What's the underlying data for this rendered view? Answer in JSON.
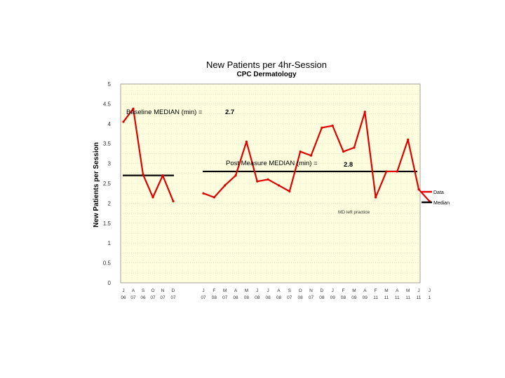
{
  "chart_data": {
    "type": "line",
    "title": "New Patients per 4hr-Session",
    "subtitle": "CPC Dermatology",
    "ylabel": "New Patients per Session",
    "ylim": [
      0,
      5
    ],
    "yticks": [
      "0",
      "0.5",
      "1",
      "1.5",
      "2",
      "2.5",
      "3",
      "3.5",
      "4",
      "4.5",
      "5"
    ],
    "grid": "dotted",
    "plot_background": "#FFFFE0",
    "baseline": {
      "x": [
        {
          "m": "J",
          "y": "06"
        },
        {
          "m": "A",
          "y": "07"
        },
        {
          "m": "S",
          "y": "06"
        },
        {
          "m": "O",
          "y": "07"
        },
        {
          "m": "N",
          "y": "07"
        },
        {
          "m": "D",
          "y": "07"
        }
      ],
      "values": [
        4.05,
        4.38,
        2.72,
        2.15,
        2.7,
        2.05
      ],
      "median": 2.7,
      "label": "Baseline MEDIAN (min) =",
      "median_label": "2.7"
    },
    "post": {
      "x": [
        {
          "m": "J",
          "y": "07"
        },
        {
          "m": "F",
          "y": "08"
        },
        {
          "m": "M",
          "y": "07"
        },
        {
          "m": "A",
          "y": "08"
        },
        {
          "m": "M",
          "y": "08"
        },
        {
          "m": "J",
          "y": "08"
        },
        {
          "m": "J",
          "y": "08"
        },
        {
          "m": "A",
          "y": "08"
        },
        {
          "m": "S",
          "y": "07"
        },
        {
          "m": "O",
          "y": "08"
        },
        {
          "m": "N",
          "y": "07"
        },
        {
          "m": "D",
          "y": "08"
        },
        {
          "m": "J",
          "y": "09"
        },
        {
          "m": "F",
          "y": "08"
        },
        {
          "m": "M",
          "y": "09"
        },
        {
          "m": "A",
          "y": "09"
        },
        {
          "m": "F",
          "y": "11"
        },
        {
          "m": "M",
          "y": "11"
        },
        {
          "m": "A",
          "y": "11"
        },
        {
          "m": "M",
          "y": "11"
        },
        {
          "m": "J",
          "y": "11"
        },
        {
          "m": "J",
          "y": "1"
        }
      ],
      "values": [
        2.25,
        2.15,
        2.45,
        2.7,
        3.55,
        2.55,
        2.6,
        2.45,
        2.3,
        3.3,
        3.2,
        3.9,
        3.95,
        3.3,
        3.4,
        4.3,
        2.15,
        2.8,
        2.8,
        3.6,
        2.35,
        2.05
      ],
      "median": 2.8,
      "label": "Post Measure MEDIAN (min) =",
      "median_label": "2.8"
    },
    "annotation": {
      "text": "MD left practice",
      "after_index": 15
    },
    "legend": {
      "placement": "right",
      "entries": [
        {
          "name": "Data",
          "color": "#E00000"
        },
        {
          "name": "Median",
          "color": "#000000"
        }
      ]
    },
    "colors": {
      "data": "#E00000",
      "median": "#000000"
    }
  }
}
